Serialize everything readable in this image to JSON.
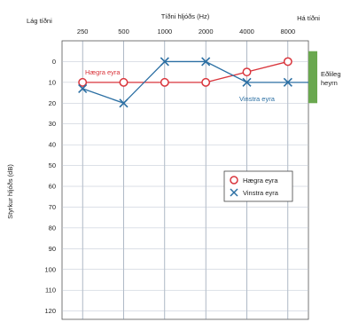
{
  "chart_data": {
    "type": "line",
    "title": "Tíðni hljóðs (Hz)",
    "corner_left_label": "Lág tíðni",
    "corner_right_label": "Há tíðni",
    "ylabel": "Styrkur hljóðs (dB)",
    "x": [
      250,
      500,
      1000,
      2000,
      4000,
      8000
    ],
    "x_tick_labels": [
      "250",
      "500",
      "1000",
      "2000",
      "4000",
      "8000"
    ],
    "ylim": [
      0,
      120
    ],
    "y_inverted": true,
    "y_ticks": [
      0,
      10,
      20,
      30,
      40,
      50,
      60,
      70,
      80,
      90,
      100,
      110,
      120
    ],
    "y_tick_labels": [
      "0",
      "10",
      "20",
      "30",
      "40",
      "50",
      "60",
      "70",
      "80",
      "90",
      "100",
      "110",
      "120"
    ],
    "grid": true,
    "legend_position": "right",
    "normal_hearing_band": {
      "label": "Eðlileg heyrn",
      "color": "#6aa84f",
      "range": [
        -5,
        20
      ]
    },
    "series": [
      {
        "name": "Hægra eyra",
        "marker": "circle",
        "color": "#d9353c",
        "values": [
          10,
          10,
          10,
          10,
          5,
          0
        ]
      },
      {
        "name": "Vinstra eyra",
        "marker": "x",
        "color": "#2b6fa3",
        "values": [
          13,
          20,
          0,
          0,
          10,
          10
        ]
      }
    ]
  }
}
